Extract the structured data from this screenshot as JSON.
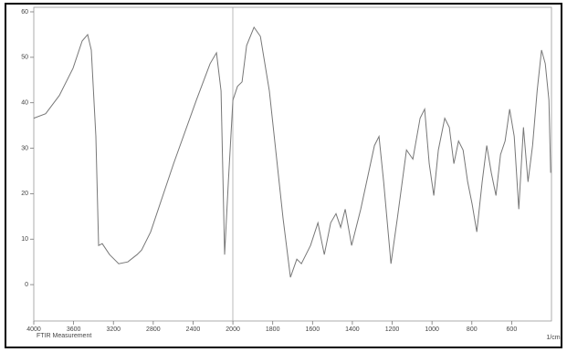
{
  "chart_data": {
    "type": "line",
    "caption": "FTIR Measurement",
    "xlabel": "1/cm",
    "x": [
      4000,
      3881,
      3743,
      3606,
      3514,
      3459,
      3422,
      3376,
      3349,
      3312,
      3239,
      3147,
      3055,
      2963,
      2917,
      2826,
      2596,
      2367,
      2229,
      2165,
      2119,
      2083,
      2046,
      2000,
      1977,
      1954,
      1931,
      1894,
      1862,
      1817,
      1748,
      1711,
      1679,
      1656,
      1610,
      1573,
      1541,
      1509,
      1482,
      1459,
      1436,
      1404,
      1358,
      1289,
      1266,
      1243,
      1206,
      1174,
      1128,
      1096,
      1060,
      1037,
      1014,
      991,
      968,
      936,
      913,
      890,
      867,
      844,
      821,
      798,
      775,
      748,
      725,
      702,
      679,
      656,
      633,
      610,
      587,
      564,
      541,
      518,
      495,
      472,
      450,
      431,
      413,
      404
    ],
    "series": [
      {
        "color": "#777777",
        "values": [
          36.6,
          37.6,
          41.6,
          47.6,
          53.6,
          55,
          51.6,
          32.6,
          8.6,
          9,
          6.6,
          4.6,
          5,
          6.6,
          7.6,
          11.6,
          26.6,
          40.6,
          48.6,
          51,
          42.6,
          6.6,
          22.6,
          40.6,
          43.6,
          44.6,
          52.6,
          56.6,
          54.6,
          42.6,
          14.6,
          1.6,
          5.6,
          4.6,
          8.6,
          13.6,
          6.6,
          13.6,
          15.6,
          12.6,
          16.6,
          8.6,
          16.6,
          30.6,
          32.6,
          22.6,
          4.6,
          14.6,
          29.6,
          27.6,
          36.6,
          38.6,
          26.6,
          19.6,
          29.6,
          36.6,
          34.6,
          26.6,
          31.6,
          29.6,
          22.6,
          17.6,
          11.6,
          22.6,
          30.6,
          24.6,
          19.6,
          28.6,
          31.6,
          38.6,
          32.6,
          16.6,
          34.6,
          22.6,
          30.6,
          42.6,
          51.6,
          48.6,
          40.6,
          24.6
        ]
      }
    ],
    "xlim": [
      4000,
      400
    ],
    "xticks": [
      4000,
      3600,
      3200,
      2800,
      2400,
      2000,
      1800,
      1600,
      1400,
      1200,
      1000,
      800,
      600
    ],
    "ylim": [
      -8,
      61
    ],
    "yticks": [
      0,
      10,
      20,
      30,
      40,
      50,
      60
    ]
  }
}
